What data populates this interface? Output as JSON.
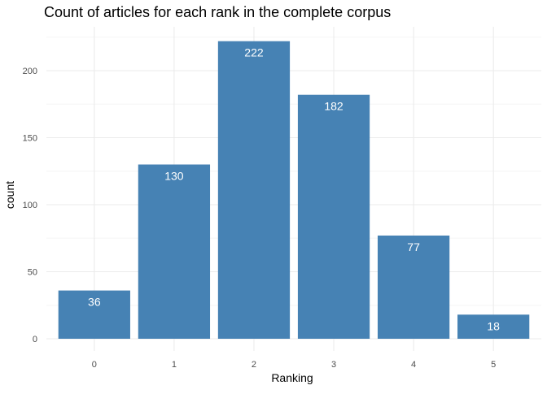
{
  "chart_data": {
    "type": "bar",
    "title": "Count of articles for each rank in the complete corpus",
    "xlabel": "Ranking",
    "ylabel": "count",
    "categories": [
      "0",
      "1",
      "2",
      "3",
      "4",
      "5"
    ],
    "values": [
      36,
      130,
      222,
      182,
      77,
      18
    ],
    "y_ticks": [
      0,
      50,
      100,
      150,
      200
    ],
    "ylim": [
      0,
      233
    ],
    "grid": true,
    "legend": "none",
    "colors": {
      "bar": "#4682b4",
      "bar_label": "#ffffff",
      "grid_major": "#ebebeb",
      "grid_minor": "#f5f5f5",
      "tick_label": "#4d4d4d",
      "text": "#000000"
    }
  }
}
